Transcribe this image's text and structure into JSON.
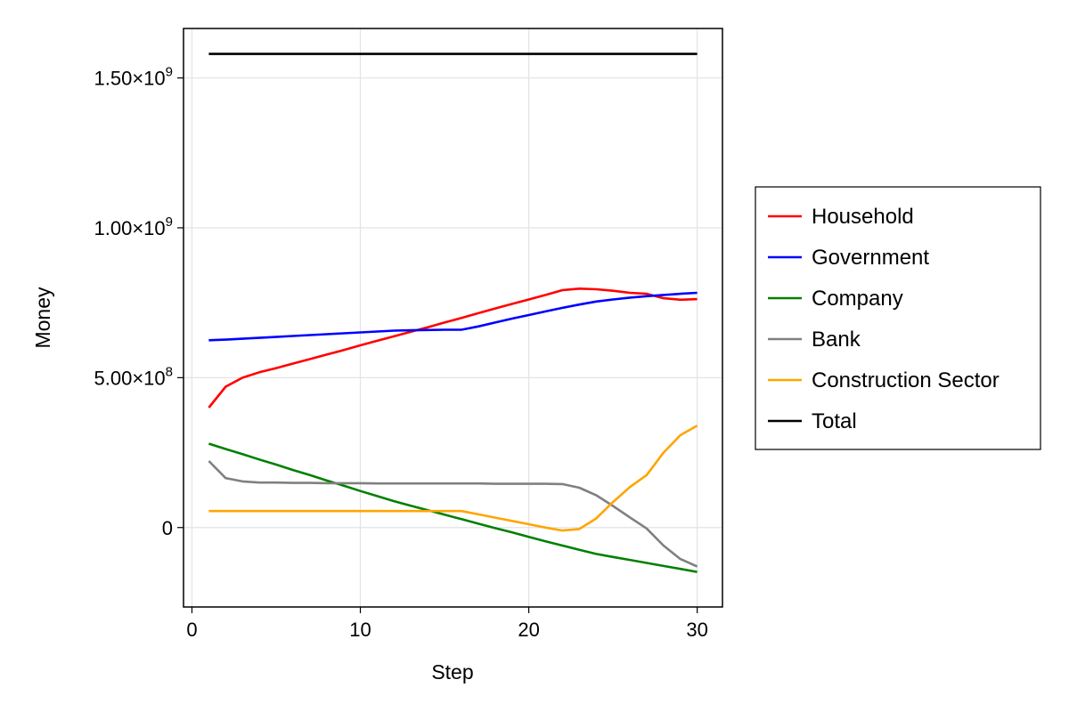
{
  "chart_data": {
    "type": "line",
    "xlabel": "Step",
    "ylabel": "Money",
    "xlim": [
      -0.5,
      31.5
    ],
    "ylim": [
      -265000000,
      1665000000
    ],
    "x_ticks": [
      {
        "value": 0,
        "label": "0"
      },
      {
        "value": 10,
        "label": "10"
      },
      {
        "value": 20,
        "label": "20"
      },
      {
        "value": 30,
        "label": "30"
      }
    ],
    "y_ticks": [
      {
        "value": 0,
        "label": "0"
      },
      {
        "value": 500000000,
        "label": "5.00×10",
        "exp": "8"
      },
      {
        "value": 1000000000,
        "label": "1.00×10",
        "exp": "9"
      },
      {
        "value": 1500000000,
        "label": "1.50×10",
        "exp": "9"
      }
    ],
    "grid": true,
    "legend_position": "right",
    "x": [
      1,
      2,
      3,
      4,
      5,
      6,
      7,
      8,
      9,
      10,
      11,
      12,
      13,
      14,
      15,
      16,
      17,
      18,
      19,
      20,
      21,
      22,
      23,
      24,
      25,
      26,
      27,
      28,
      29,
      30
    ],
    "series": [
      {
        "name": "Household",
        "color": "#ff0000",
        "values": [
          400000000,
          470000000,
          500000000,
          518000000,
          532000000,
          547000000,
          562000000,
          577000000,
          592000000,
          608000000,
          623000000,
          638000000,
          653000000,
          668000000,
          684000000,
          699000000,
          715000000,
          731000000,
          746000000,
          761000000,
          776000000,
          792000000,
          797000000,
          795000000,
          790000000,
          783000000,
          780000000,
          765000000,
          760000000,
          762000000
        ]
      },
      {
        "name": "Government",
        "color": "#0000ff",
        "values": [
          625000000,
          627000000,
          630000000,
          633000000,
          636000000,
          639000000,
          642000000,
          645000000,
          648000000,
          651000000,
          654000000,
          657000000,
          658000000,
          659000000,
          660000000,
          660000000,
          671000000,
          684000000,
          697000000,
          709000000,
          721000000,
          733000000,
          744000000,
          754000000,
          761000000,
          767000000,
          772000000,
          776000000,
          780000000,
          783000000
        ]
      },
      {
        "name": "Company",
        "color": "#008000",
        "values": [
          280000000,
          262000000,
          245000000,
          227000000,
          210000000,
          192000000,
          175000000,
          157000000,
          140000000,
          122000000,
          105000000,
          88000000,
          73000000,
          58000000,
          43000000,
          28000000,
          13000000,
          -2000000,
          -16000000,
          -31000000,
          -46000000,
          -60000000,
          -74000000,
          -88000000,
          -98000000,
          -108000000,
          -118000000,
          -128000000,
          -138000000,
          -148000000
        ]
      },
      {
        "name": "Bank",
        "color": "#808080",
        "values": [
          222000000,
          165000000,
          154000000,
          150000000,
          150000000,
          149000000,
          149000000,
          148000000,
          148000000,
          148000000,
          147000000,
          147000000,
          147000000,
          147000000,
          147000000,
          147000000,
          147000000,
          146000000,
          146000000,
          146000000,
          146000000,
          145000000,
          133000000,
          108000000,
          72000000,
          34000000,
          -3000000,
          -60000000,
          -105000000,
          -130000000
        ]
      },
      {
        "name": "Construction Sector",
        "color": "#ffa500",
        "values": [
          55000000,
          55000000,
          55000000,
          55000000,
          55000000,
          55000000,
          55000000,
          55000000,
          55000000,
          55000000,
          55000000,
          55000000,
          55000000,
          55000000,
          55000000,
          55000000,
          44000000,
          33000000,
          22000000,
          11000000,
          0,
          -10000000,
          -5000000,
          30000000,
          85000000,
          135000000,
          175000000,
          250000000,
          308000000,
          340000000
        ]
      },
      {
        "name": "Total",
        "color": "#000000",
        "values": [
          1580000000,
          1580000000,
          1580000000,
          1580000000,
          1580000000,
          1580000000,
          1580000000,
          1580000000,
          1580000000,
          1580000000,
          1580000000,
          1580000000,
          1580000000,
          1580000000,
          1580000000,
          1580000000,
          1580000000,
          1580000000,
          1580000000,
          1580000000,
          1580000000,
          1580000000,
          1580000000,
          1580000000,
          1580000000,
          1580000000,
          1580000000,
          1580000000,
          1580000000,
          1580000000
        ]
      }
    ]
  }
}
